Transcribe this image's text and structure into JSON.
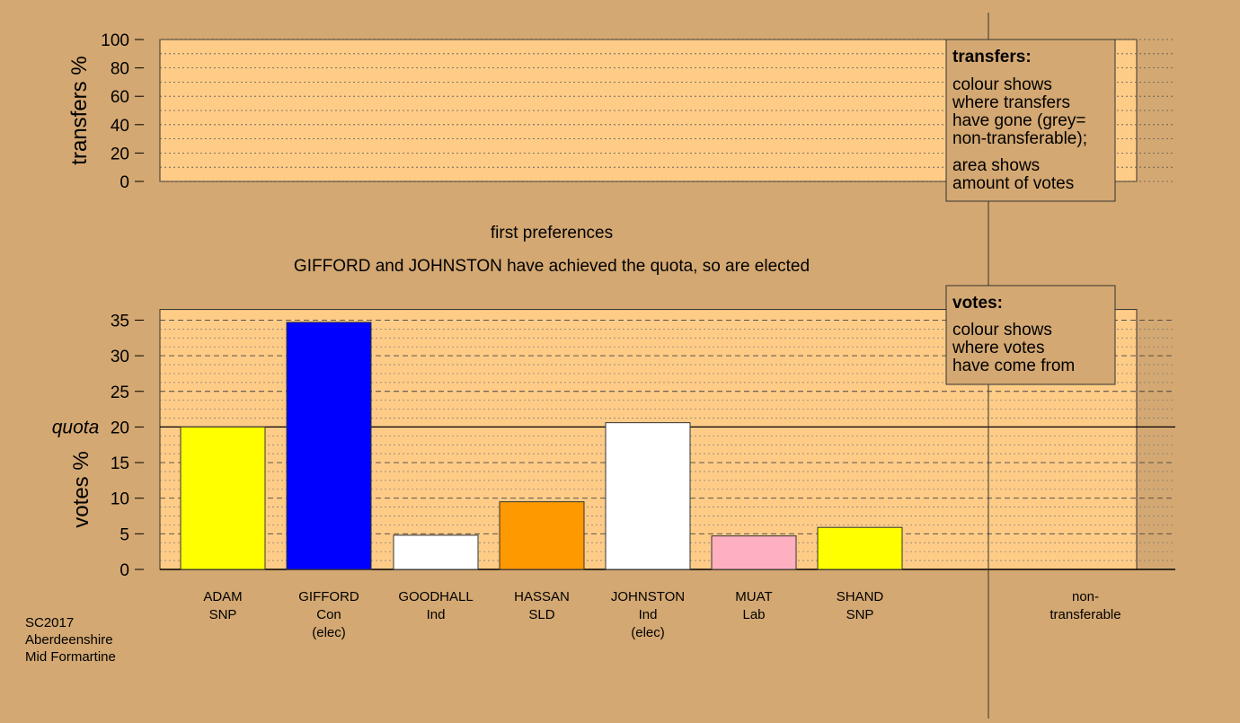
{
  "colors": {
    "background": "#d4a872",
    "plot_area": "#ffcc88",
    "box_fill": "#d4a872"
  },
  "headings": {
    "round": "first preferences",
    "status": "GIFFORD and JOHNSTON have achieved the quota, so are elected"
  },
  "footer": [
    "SC2017",
    "Aberdeenshire",
    "Mid Formartine"
  ],
  "legend_transfers": {
    "title": "transfers:",
    "lines1": [
      "colour shows",
      "where transfers",
      "have gone (grey=",
      "non-transferable);"
    ],
    "lines2": [
      "area shows",
      "amount of votes"
    ]
  },
  "legend_votes": {
    "title": "votes:",
    "lines": [
      "colour shows",
      "where votes",
      "have come from"
    ]
  },
  "chart_data": [
    {
      "type": "bar",
      "ylabel": "transfers %",
      "ylim": [
        0,
        100
      ],
      "yticks": [
        0,
        20,
        40,
        60,
        80,
        100
      ],
      "values": []
    },
    {
      "type": "bar",
      "ylabel": "votes %",
      "ylim": [
        0,
        36.5
      ],
      "yticks": [
        0,
        5,
        10,
        15,
        20,
        25,
        30,
        35
      ],
      "quota": 20,
      "quota_label": "quota",
      "categories": [
        {
          "lines": [
            "ADAM",
            "SNP"
          ],
          "value": 20.0,
          "color": "#ffff00"
        },
        {
          "lines": [
            "GIFFORD",
            "Con",
            "(elec)"
          ],
          "value": 34.7,
          "color": "#0000ff"
        },
        {
          "lines": [
            "GOODHALL",
            "Ind"
          ],
          "value": 4.8,
          "color": "#ffffff"
        },
        {
          "lines": [
            "HASSAN",
            "SLD"
          ],
          "value": 9.5,
          "color": "#ff9900"
        },
        {
          "lines": [
            "JOHNSTON",
            "Ind",
            "(elec)"
          ],
          "value": 20.6,
          "color": "#ffffff"
        },
        {
          "lines": [
            "MUAT",
            "Lab"
          ],
          "value": 4.7,
          "color": "#ffb0c0"
        },
        {
          "lines": [
            "SHAND",
            "SNP"
          ],
          "value": 5.9,
          "color": "#ffff00"
        },
        {
          "lines": [
            "non-",
            "transferable"
          ],
          "value": 0,
          "color": "#999999"
        }
      ]
    }
  ]
}
